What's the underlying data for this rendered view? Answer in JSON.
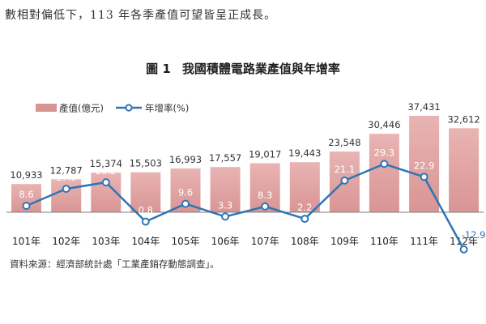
{
  "intro_text": "數相對偏低下，113 年各季產值可望皆呈正成長。",
  "figure": {
    "number": "圖 1",
    "title": "我國積體電路業產值與年增率"
  },
  "source_note": "資料來源：經濟部統計處「工業產銷存動態調查」。",
  "chart_data": {
    "type": "bar",
    "categories": [
      "101年",
      "102年",
      "103年",
      "104年",
      "105年",
      "106年",
      "107年",
      "108年",
      "109年",
      "110年",
      "111年",
      "112年"
    ],
    "series": [
      {
        "name": "產值(億元)",
        "kind": "bar",
        "values": [
          10933,
          12787,
          15374,
          15503,
          16993,
          17557,
          19017,
          19443,
          23548,
          30446,
          37431,
          32612
        ],
        "labels": [
          "10,933",
          "12,787",
          "15,374",
          "15,503",
          "16,993",
          "17,557",
          "19,017",
          "19,443",
          "23,548",
          "30,446",
          "37,431",
          "32,612"
        ]
      },
      {
        "name": "年增率(%)",
        "kind": "line",
        "values": [
          8.6,
          17.0,
          20.2,
          0.8,
          9.6,
          3.3,
          8.3,
          2.2,
          21.1,
          29.3,
          22.9,
          -12.9
        ],
        "labels": [
          "8.6",
          "17.0",
          "20.2",
          "0.8",
          "9.6",
          "3.3",
          "8.3",
          "2.2",
          "21.1",
          "29.3",
          "22.9",
          "-12.9"
        ]
      }
    ],
    "legend_position": "top-left",
    "grid": false,
    "colors": {
      "bar": "#d99594",
      "bar_top": "#e8b4b3",
      "line": "#2e75b6",
      "marker_fill": "#ffffff",
      "axis": "#7f7f7f"
    }
  }
}
